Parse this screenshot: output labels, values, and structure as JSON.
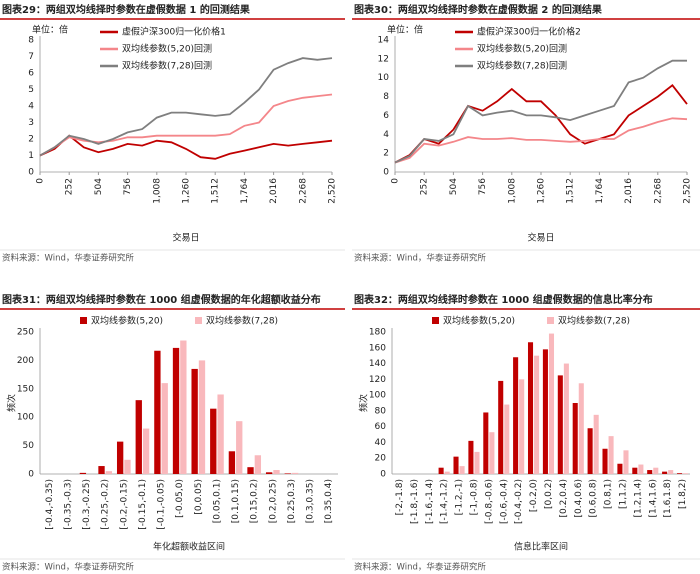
{
  "chart_data": [
    {
      "type": "line",
      "title": "图表29：两组双均线择时参数在虚假数据 1 的回测结果",
      "source": "资料来源：Wind，华泰证券研究所",
      "y_unit": "单位：倍",
      "xlabel": "交易日",
      "x": [
        0,
        126,
        252,
        378,
        504,
        630,
        756,
        882,
        1008,
        1134,
        1260,
        1386,
        1512,
        1638,
        1764,
        1890,
        2016,
        2142,
        2268,
        2394,
        2520
      ],
      "xlim": [
        0,
        2520
      ],
      "xticks": [
        0,
        252,
        504,
        756,
        {
          "value": 1008,
          "label": "1,008"
        },
        {
          "value": 1260,
          "label": "1,260"
        },
        {
          "value": 1512,
          "label": "1,512"
        },
        {
          "value": 1764,
          "label": "1,764"
        },
        {
          "value": 2016,
          "label": "2,016"
        },
        {
          "value": 2268,
          "label": "2,268"
        },
        {
          "value": 2520,
          "label": "2,520"
        }
      ],
      "ylim": [
        0,
        8
      ],
      "yticks": [
        0,
        1,
        2,
        3,
        4,
        5,
        6,
        7,
        8
      ],
      "grid": false,
      "series": [
        {
          "name": "虚假沪深300归一化价格1",
          "color": "#c00000",
          "values": [
            1,
            1.4,
            2.2,
            1.5,
            1.2,
            1.4,
            1.7,
            1.6,
            1.9,
            1.8,
            1.4,
            0.9,
            0.8,
            1.1,
            1.3,
            1.5,
            1.7,
            1.6,
            1.7,
            1.8,
            1.9
          ]
        },
        {
          "name": "双均线参数(5,20)回测",
          "color": "#f4868a",
          "values": [
            1,
            1.5,
            2.1,
            1.9,
            1.8,
            1.9,
            2.1,
            2.1,
            2.2,
            2.2,
            2.2,
            2.2,
            2.2,
            2.3,
            2.8,
            3.0,
            4.0,
            4.3,
            4.5,
            4.6,
            4.7
          ]
        },
        {
          "name": "双均线参数(7,28)回测",
          "color": "#7f7f7f",
          "values": [
            1,
            1.5,
            2.2,
            2.0,
            1.7,
            2.0,
            2.4,
            2.6,
            3.3,
            3.6,
            3.6,
            3.5,
            3.4,
            3.5,
            4.2,
            5.0,
            6.2,
            6.6,
            6.9,
            6.8,
            6.9
          ]
        }
      ]
    },
    {
      "type": "line",
      "title": "图表30：两组双均线择时参数在虚假数据 2 的回测结果",
      "source": "资料来源：Wind，华泰证券研究所",
      "y_unit": "单位：倍",
      "xlabel": "交易日",
      "x": [
        0,
        126,
        252,
        378,
        504,
        630,
        756,
        882,
        1008,
        1134,
        1260,
        1386,
        1512,
        1638,
        1764,
        1890,
        2016,
        2142,
        2268,
        2394,
        2520
      ],
      "xlim": [
        0,
        2520
      ],
      "xticks": [
        0,
        252,
        504,
        756,
        {
          "value": 1008,
          "label": "1,008"
        },
        {
          "value": 1260,
          "label": "1,260"
        },
        {
          "value": 1512,
          "label": "1,512"
        },
        {
          "value": 1764,
          "label": "1,764"
        },
        {
          "value": 2016,
          "label": "2,016"
        },
        {
          "value": 2268,
          "label": "2,268"
        },
        {
          "value": 2520,
          "label": "2,520"
        }
      ],
      "ylim": [
        0,
        14
      ],
      "yticks": [
        0,
        2,
        4,
        6,
        8,
        10,
        12,
        14
      ],
      "grid": false,
      "series": [
        {
          "name": "虚假沪深300归一化价格2",
          "color": "#c00000",
          "values": [
            1,
            1.8,
            3.5,
            3.0,
            4.5,
            7.0,
            6.5,
            7.5,
            8.8,
            7.5,
            7.5,
            6.0,
            4.0,
            3.0,
            3.5,
            4.0,
            6.0,
            7.0,
            8.0,
            9.2,
            7.2
          ]
        },
        {
          "name": "双均线参数(5,20)回测",
          "color": "#f4868a",
          "values": [
            1,
            1.5,
            3.0,
            2.8,
            3.2,
            3.7,
            3.5,
            3.5,
            3.6,
            3.4,
            3.4,
            3.3,
            3.2,
            3.3,
            3.5,
            3.5,
            4.4,
            4.8,
            5.3,
            5.7,
            5.6
          ]
        },
        {
          "name": "双均线参数(7,28)回测",
          "color": "#7f7f7f",
          "values": [
            1,
            1.7,
            3.5,
            3.3,
            4.0,
            7.0,
            6.0,
            6.3,
            6.5,
            6.0,
            6.0,
            5.8,
            5.5,
            6.0,
            6.5,
            7.0,
            9.5,
            10,
            11,
            11.8,
            11.8
          ]
        }
      ]
    },
    {
      "type": "bar",
      "title": "图表31：两组双均线择时参数在 1000 组虚假数据的年化超额收益分布",
      "source": "资料来源：Wind，华泰证券研究所",
      "ylabel": "频次",
      "xlabel": "年化超额收益区间",
      "categories": [
        "[-0.4,-0.35)",
        "[-0.35,-0.3)",
        "[-0.3,-0.25)",
        "[-0.25,-0.2)",
        "[-0.2,-0.15)",
        "[-0.15,-0.1)",
        "[-0.1,-0.05)",
        "[-0.05,0)",
        "[0,0.05)",
        "[0.05,0.1)",
        "[0.1,0.15)",
        "[0.15,0.2)",
        "[0.2,0.25)",
        "[0.25,0.3)",
        "[0.3,0.35)",
        "[0.35,0.4)"
      ],
      "ylim": [
        0,
        250
      ],
      "yticks": [
        0,
        50,
        100,
        150,
        200,
        250
      ],
      "grid": false,
      "series": [
        {
          "name": "双均线参数(5,20)",
          "color": "#c00000",
          "values": [
            0,
            0,
            2,
            14,
            57,
            130,
            217,
            222,
            185,
            115,
            40,
            12,
            3,
            1,
            0,
            0
          ]
        },
        {
          "name": "双均线参数(7,28)",
          "color": "#f9b8bc",
          "values": [
            0,
            0,
            0,
            5,
            25,
            80,
            160,
            235,
            200,
            140,
            93,
            33,
            7,
            2,
            0,
            0
          ]
        }
      ]
    },
    {
      "type": "bar",
      "title": "图表32：两组双均线择时参数在 1000 组虚假数据的信息比率分布",
      "source": "资料来源：Wind，华泰证券研究所",
      "ylabel": "频次",
      "xlabel": "信息比率区间",
      "categories": [
        "[-2,-1.8)",
        "[-1.8,-1.6)",
        "[-1.6,-1.4)",
        "[-1.4,-1.2)",
        "[-1.2,-1)",
        "[-1,-0.8)",
        "[-0.8,-0.6)",
        "[-0.6,-0.4)",
        "[-0.4,-0.2)",
        "[-0.2,0)",
        "[0,0.2)",
        "[0.2,0.4)",
        "[0.4,0.6)",
        "[0.6,0.8)",
        "[0.8,1)",
        "[1,1.2)",
        "[1.2,1.4)",
        "[1.4,1.6)",
        "[1.6,1.8)",
        "[1.8,2)"
      ],
      "ylim": [
        0,
        180
      ],
      "yticks": [
        0,
        20,
        40,
        60,
        80,
        100,
        120,
        140,
        160,
        180
      ],
      "grid": false,
      "series": [
        {
          "name": "双均线参数(5,20)",
          "color": "#c00000",
          "values": [
            0,
            0,
            0,
            8,
            22,
            42,
            78,
            118,
            148,
            167,
            158,
            125,
            90,
            58,
            32,
            13,
            8,
            5,
            3,
            1
          ]
        },
        {
          "name": "双均线参数(7,28)",
          "color": "#f9b8bc",
          "values": [
            0,
            0,
            0,
            3,
            10,
            28,
            53,
            88,
            120,
            150,
            178,
            140,
            115,
            75,
            48,
            30,
            12,
            8,
            5,
            1
          ]
        }
      ]
    }
  ]
}
